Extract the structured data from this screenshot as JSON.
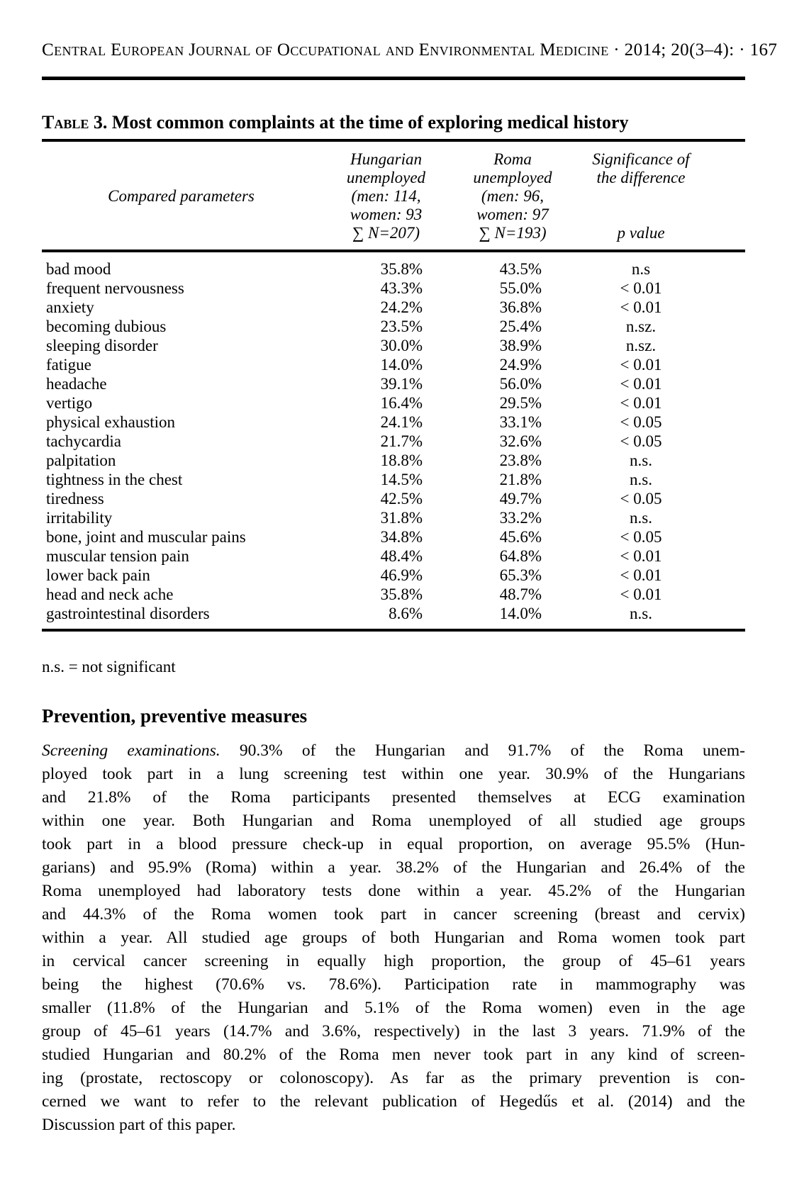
{
  "header": {
    "journal_line": "Central European Journal of Occupational and Environmental Medicine · 2014; 20(3–4): · 167"
  },
  "table": {
    "title_label": "Table 3.",
    "title_rest": "Most common complaints at the time of exploring medical history",
    "columns": {
      "param": "Compared parameters",
      "hungarian": [
        "Hungarian",
        "unemployed",
        "(men: 114,",
        "women: 93",
        "∑ N=207)"
      ],
      "roma": [
        "Roma",
        "unemployed",
        "(men: 96,",
        "women: 97",
        "∑ N=193)"
      ],
      "significance": [
        "Significance of",
        "the difference"
      ],
      "p_value": "p value"
    },
    "rows": [
      {
        "param": "bad mood",
        "hungarian": "35.8%",
        "roma": "43.5%",
        "p": "n.s"
      },
      {
        "param": "frequent nervousness",
        "hungarian": "43.3%",
        "roma": "55.0%",
        "p": "< 0.01"
      },
      {
        "param": "anxiety",
        "hungarian": "24.2%",
        "roma": "36.8%",
        "p": "< 0.01"
      },
      {
        "param": "becoming dubious",
        "hungarian": "23.5%",
        "roma": "25.4%",
        "p": "n.sz."
      },
      {
        "param": "sleeping disorder",
        "hungarian": "30.0%",
        "roma": "38.9%",
        "p": "n.sz."
      },
      {
        "param": "fatigue",
        "hungarian": "14.0%",
        "roma": "24.9%",
        "p": "< 0.01"
      },
      {
        "param": "headache",
        "hungarian": "39.1%",
        "roma": "56.0%",
        "p": "< 0.01"
      },
      {
        "param": "vertigo",
        "hungarian": "16.4%",
        "roma": "29.5%",
        "p": "< 0.01"
      },
      {
        "param": "physical exhaustion",
        "hungarian": "24.1%",
        "roma": "33.1%",
        "p": "< 0.05"
      },
      {
        "param": "tachycardia",
        "hungarian": "21.7%",
        "roma": "32.6%",
        "p": "< 0.05"
      },
      {
        "param": "palpitation",
        "hungarian": "18.8%",
        "roma": "23.8%",
        "p": "n.s."
      },
      {
        "param": "tightness in the chest",
        "hungarian": "14.5%",
        "roma": "21.8%",
        "p": "n.s."
      },
      {
        "param": "tiredness",
        "hungarian": "42.5%",
        "roma": "49.7%",
        "p": "< 0.05"
      },
      {
        "param": "irritability",
        "hungarian": "31.8%",
        "roma": "33.2%",
        "p": "n.s."
      },
      {
        "param": "bone, joint and muscular pains",
        "hungarian": "34.8%",
        "roma": "45.6%",
        "p": "< 0.05"
      },
      {
        "param": "muscular tension pain",
        "hungarian": "48.4%",
        "roma": "64.8%",
        "p": "< 0.01"
      },
      {
        "param": "lower back pain",
        "hungarian": "46.9%",
        "roma": "65.3%",
        "p": "< 0.01"
      },
      {
        "param": "head and neck ache",
        "hungarian": "35.8%",
        "roma": "48.7%",
        "p": "< 0.01"
      },
      {
        "param": "gastrointestinal disorders",
        "hungarian": "8.6%",
        "roma": "14.0%",
        "p": "n.s."
      }
    ],
    "footnote": "n.s. = not significant"
  },
  "section": {
    "heading": "Prevention, preventive measures",
    "paragraph_lines": [
      {
        "italic": "Screening examinations.",
        "text": "90.3% of the Hungarian and 91.7% of the Roma unem-"
      },
      {
        "text": "ployed took part in a lung screening test within one year. 30.9% of the Hungarians"
      },
      {
        "text": "and 21.8% of the Roma participants presented themselves at ECG examination"
      },
      {
        "text": "within one year. Both Hungarian and Roma unemployed of all studied age groups"
      },
      {
        "text": "took part in a blood pressure check-up in equal proportion, on average 95.5% (Hun-"
      },
      {
        "text": "garians) and 95.9% (Roma) within a year. 38.2% of the Hungarian and 26.4% of the"
      },
      {
        "text": "Roma unemployed had laboratory tests done within a year. 45.2% of the Hungarian"
      },
      {
        "text": "and 44.3% of the Roma women took part in cancer screening (breast and cervix)"
      },
      {
        "text": "within a year. All studied age groups of both Hungarian and Roma women took part"
      },
      {
        "text": "in cervical cancer screening in equally high proportion, the group of 45–61 years"
      },
      {
        "text": "being the highest (70.6% vs. 78.6%). Participation rate in mammography was"
      },
      {
        "text": "smaller (11.8% of the Hungarian and 5.1% of the Roma women) even in the age"
      },
      {
        "text": "group of 45–61 years (14.7% and 3.6%, respectively) in the last 3 years. 71.9% of the"
      },
      {
        "text": "studied Hungarian and 80.2% of the Roma men never took part in any kind of screen-"
      },
      {
        "text": "ing (prostate, rectoscopy or colonoscopy). As far as the primary prevention is con-"
      },
      {
        "text": "cerned we want to refer to the relevant publication of Hegedűs et al. (2014) and the"
      },
      {
        "text": "Discussion part of this paper.",
        "last": true
      }
    ]
  }
}
